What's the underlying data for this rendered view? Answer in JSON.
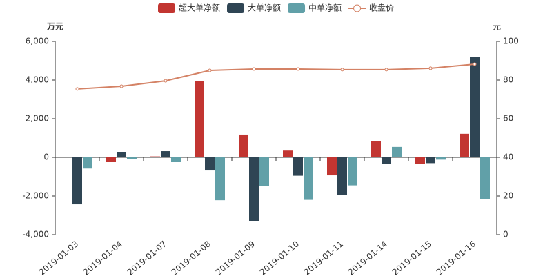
{
  "chart_data": {
    "type": "bar",
    "categories": [
      "2019-01-03",
      "2019-01-04",
      "2019-01-07",
      "2019-01-08",
      "2019-01-09",
      "2019-01-10",
      "2019-01-11",
      "2019-01-14",
      "2019-01-15",
      "2019-01-16"
    ],
    "series": [
      {
        "name": "超大单净额",
        "color": "#c23531",
        "values": [
          0,
          -250,
          50,
          3930,
          1180,
          350,
          -930,
          850,
          -350,
          1220
        ]
      },
      {
        "name": "大单净额",
        "color": "#2f4554",
        "values": [
          -2430,
          250,
          320,
          -680,
          -3290,
          -950,
          -1930,
          -350,
          -300,
          5210
        ]
      },
      {
        "name": "中单净额",
        "color": "#61a0a8",
        "values": [
          -580,
          -80,
          -250,
          -2220,
          -1480,
          -2200,
          -1450,
          540,
          -120,
          -2170
        ]
      },
      {
        "name": "收盘价",
        "color": "#d48265",
        "type": "line",
        "axis": "y2",
        "values": [
          75.4,
          76.8,
          79.6,
          85.0,
          85.7,
          85.7,
          85.4,
          85.4,
          86.1,
          88.2
        ]
      }
    ],
    "y_label": "万元",
    "y2_label": "元",
    "ylim": [
      -4000,
      6000
    ],
    "yticks": [
      {
        "value": -4000,
        "label": "-4,000"
      },
      {
        "value": -2000,
        "label": "-2,000"
      },
      0,
      {
        "value": 2000,
        "label": "2,000"
      },
      {
        "value": 4000,
        "label": "4,000"
      },
      {
        "value": 6000,
        "label": "6,000"
      }
    ],
    "y2lim": [
      0,
      100
    ],
    "y2ticks": [
      0,
      20,
      40,
      60,
      80,
      100
    ],
    "legend": "top"
  }
}
